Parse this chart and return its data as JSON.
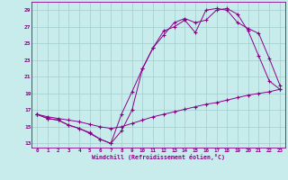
{
  "xlabel": "Windchill (Refroidissement éolien,°C)",
  "xlim": [
    -0.5,
    23.5
  ],
  "ylim": [
    12.5,
    30.0
  ],
  "yticks": [
    13,
    15,
    17,
    19,
    21,
    23,
    25,
    27,
    29
  ],
  "xticks": [
    0,
    1,
    2,
    3,
    4,
    5,
    6,
    7,
    8,
    9,
    10,
    11,
    12,
    13,
    14,
    15,
    16,
    17,
    18,
    19,
    20,
    21,
    22,
    23
  ],
  "bg_color": "#c8ecec",
  "grid_color": "#a0cccc",
  "line_color": "#880088",
  "line1_x": [
    0,
    1,
    2,
    3,
    4,
    5,
    6,
    7,
    8,
    9,
    10,
    11,
    12,
    13,
    14,
    15,
    16,
    17,
    18,
    19,
    20,
    21,
    22,
    23
  ],
  "line1_y": [
    16.5,
    16.2,
    16.0,
    15.8,
    15.6,
    15.3,
    15.0,
    14.8,
    15.0,
    15.4,
    15.8,
    16.2,
    16.5,
    16.8,
    17.1,
    17.4,
    17.7,
    17.9,
    18.2,
    18.5,
    18.8,
    19.0,
    19.2,
    19.5
  ],
  "line2_x": [
    0,
    1,
    2,
    3,
    4,
    5,
    6,
    7,
    8,
    9,
    10,
    11,
    12,
    13,
    14,
    15,
    16,
    17,
    18,
    19,
    20,
    21,
    22,
    23
  ],
  "line2_y": [
    16.5,
    16.0,
    15.8,
    15.2,
    14.8,
    14.3,
    13.5,
    13.0,
    14.5,
    17.0,
    22.0,
    24.5,
    26.0,
    27.5,
    28.0,
    27.5,
    27.8,
    29.0,
    29.2,
    28.5,
    26.5,
    23.5,
    20.5,
    19.5
  ],
  "line3_x": [
    0,
    1,
    2,
    3,
    4,
    5,
    6,
    7,
    8,
    9,
    10,
    11,
    12,
    13,
    14,
    15,
    16,
    17,
    18,
    19,
    20,
    21,
    22,
    23
  ],
  "line3_y": [
    16.5,
    16.0,
    15.8,
    15.2,
    14.8,
    14.2,
    13.5,
    13.0,
    16.5,
    19.2,
    22.0,
    24.5,
    26.5,
    27.0,
    27.8,
    26.3,
    29.0,
    29.2,
    29.0,
    27.5,
    26.8,
    26.2,
    23.2,
    20.0
  ]
}
